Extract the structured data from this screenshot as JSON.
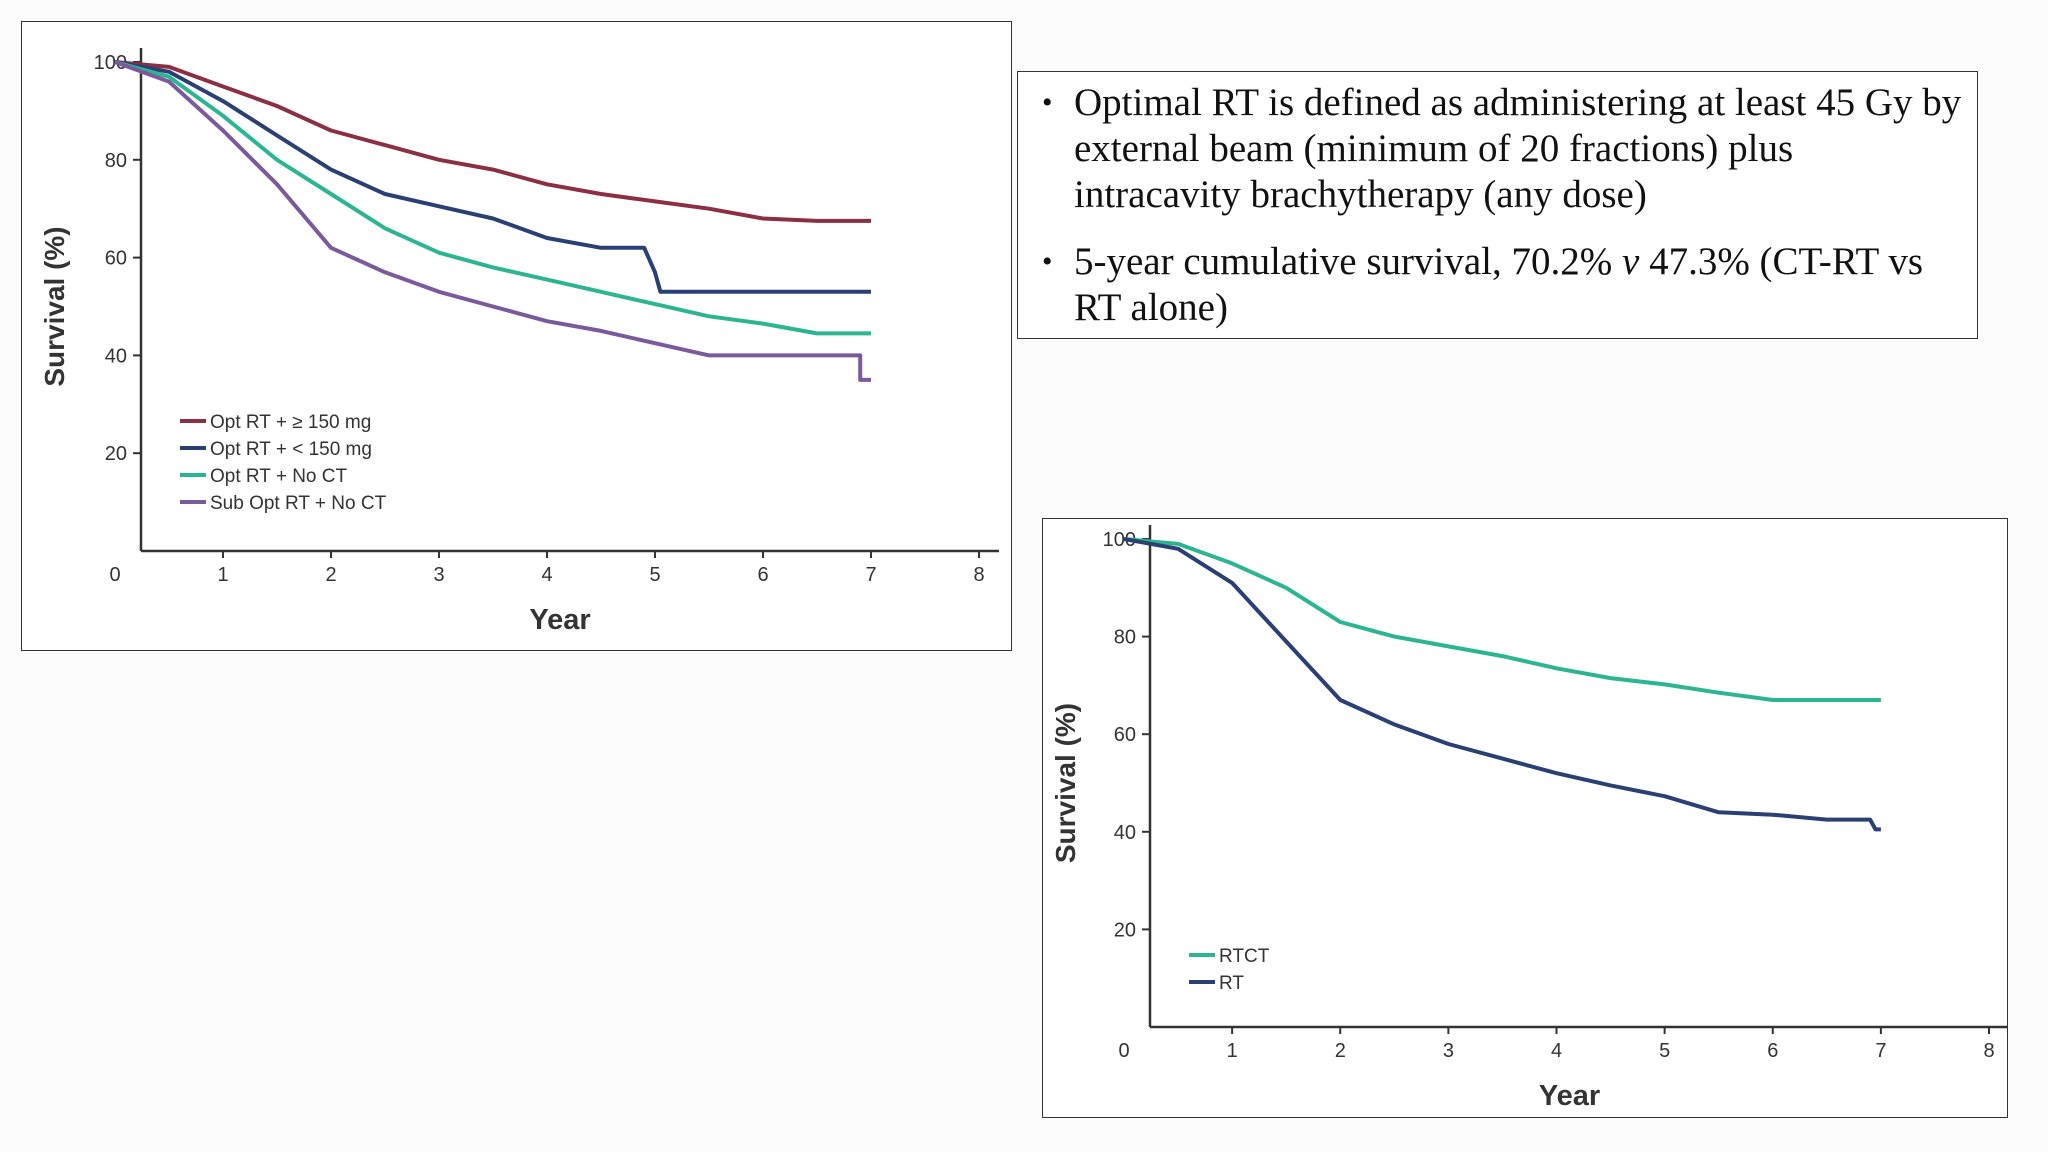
{
  "notes": {
    "bullet1": "Optimal RT is defined as administering at least 45 Gy by external beam (minimum of 20 fractions) plus intracavity brachytherapy (any dose)",
    "bullet2_pre": "5-year cumulative survival, 70.2% ",
    "bullet2_italic": "v",
    "bullet2_post": " 47.3% (CT-RT vs RT alone)"
  },
  "chart_data": [
    {
      "type": "line",
      "title": "",
      "xlabel": "Year",
      "ylabel": "Survival (%)",
      "xlim": [
        0,
        8
      ],
      "ylim": [
        0,
        100
      ],
      "x_ticks": [
        "0",
        "1",
        "2",
        "3",
        "4",
        "5",
        "6",
        "7",
        "8"
      ],
      "y_ticks": [
        "20",
        "40",
        "60",
        "80",
        "100"
      ],
      "legend_position": "bottom-left",
      "grid": false,
      "series": [
        {
          "name": "Opt RT + ≥ 150 mg",
          "color": "#8b2f45",
          "x": [
            0,
            0.5,
            1,
            1.5,
            2,
            2.5,
            3,
            3.5,
            4,
            4.5,
            5,
            5.5,
            6,
            6.5,
            7
          ],
          "y": [
            100,
            99,
            95,
            91,
            86,
            83,
            80,
            78,
            75,
            73,
            71.5,
            70,
            68,
            67.5,
            67.5
          ]
        },
        {
          "name": "Opt RT + < 150 mg",
          "color": "#2a3f73",
          "x": [
            0,
            0.5,
            1,
            1.5,
            2,
            2.5,
            3,
            3.5,
            4,
            4.5,
            4.9,
            5.0,
            5.05,
            6,
            7
          ],
          "y": [
            100,
            98,
            92,
            85,
            78,
            73,
            70.5,
            68,
            64,
            62,
            62,
            57,
            53,
            53,
            53
          ]
        },
        {
          "name": "Opt RT + No CT",
          "color": "#2bb592",
          "x": [
            0,
            0.5,
            1,
            1.5,
            2,
            2.5,
            3,
            3.5,
            4,
            4.5,
            5,
            5.5,
            6,
            6.5,
            7
          ],
          "y": [
            100,
            97,
            89,
            80,
            73,
            66,
            61,
            58,
            55.5,
            53,
            50.5,
            48,
            46.5,
            44.5,
            44.5
          ]
        },
        {
          "name": "Sub Opt RT + No CT",
          "color": "#7b5a9c",
          "x": [
            0,
            0.5,
            1,
            1.5,
            2,
            2.5,
            3,
            3.5,
            4,
            4.5,
            5,
            5.5,
            6,
            6.5,
            6.9,
            6.9,
            7
          ],
          "y": [
            100,
            96,
            86,
            75,
            62,
            57,
            53,
            50,
            47,
            45,
            42.5,
            40,
            40,
            40,
            40,
            35,
            35
          ]
        }
      ]
    },
    {
      "type": "line",
      "title": "",
      "xlabel": "Year",
      "ylabel": "Survival (%)",
      "xlim": [
        0,
        8
      ],
      "ylim": [
        0,
        100
      ],
      "x_ticks": [
        "0",
        "1",
        "2",
        "3",
        "4",
        "5",
        "6",
        "7",
        "8"
      ],
      "y_ticks": [
        "20",
        "40",
        "60",
        "80",
        "100"
      ],
      "legend_position": "bottom-left",
      "grid": false,
      "series": [
        {
          "name": "RTCT",
          "color": "#2bb592",
          "x": [
            0,
            0.5,
            1,
            1.5,
            2,
            2.5,
            3,
            3.5,
            4,
            4.5,
            5,
            5.5,
            6,
            6.5,
            7
          ],
          "y": [
            100,
            99,
            95,
            90,
            83,
            80,
            78,
            76,
            73.5,
            71.5,
            70.2,
            68.5,
            67,
            67,
            67
          ]
        },
        {
          "name": "RT",
          "color": "#2a3f73",
          "x": [
            0,
            0.5,
            1,
            1.5,
            2,
            2.5,
            3,
            3.5,
            4,
            4.5,
            5,
            5.5,
            6,
            6.5,
            6.9,
            6.95,
            7
          ],
          "y": [
            100,
            98,
            91,
            79,
            67,
            62,
            58,
            55,
            52,
            49.5,
            47.3,
            44,
            43.5,
            42.5,
            42.5,
            40.5,
            40.5
          ]
        }
      ]
    }
  ]
}
